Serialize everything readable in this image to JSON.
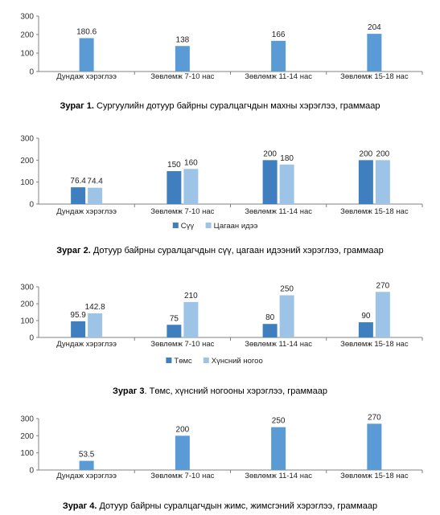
{
  "colors": {
    "primary": "#5B9BD5",
    "secondary": "#9DC3E6",
    "dark": "#3F7FBF",
    "axis": "#808080"
  },
  "chart_data": [
    {
      "type": "bar",
      "categories": [
        "Дундаж хэрэглээ",
        "Зөвлөмж 7-10 нас",
        "Зөвлөмж 11-14 нас",
        "Зөвлөмж 15-18 нас"
      ],
      "series": [
        {
          "values": [
            180.6,
            138,
            166,
            204
          ],
          "labels": [
            "180.6",
            "138",
            "166",
            "204"
          ]
        }
      ],
      "ylim": [
        0,
        300
      ],
      "yticks": [
        0,
        100,
        200,
        300
      ],
      "legend": "none",
      "caption_prefix": "Зураг 1.",
      "caption_text": " Сургуулийн дотуур байрны суралцагчдын махны хэрэглээ, граммаар"
    },
    {
      "type": "bar",
      "categories": [
        "Дундаж хэрэглээ",
        "Зөвлөмж 7-10 нас",
        "Зөвлөмж 11-14 нас",
        "Зөвлөмж 15-18 нас"
      ],
      "series": [
        {
          "name": "Сүү",
          "values": [
            76.4,
            150,
            200,
            200
          ],
          "labels": [
            "76.4",
            "150",
            "200",
            "200"
          ]
        },
        {
          "name": "Цагаан идээ",
          "values": [
            74.4,
            160,
            180,
            200
          ],
          "labels": [
            "74.4",
            "160",
            "180",
            "200"
          ]
        }
      ],
      "ylim": [
        0,
        300
      ],
      "yticks": [
        0,
        100,
        200,
        300
      ],
      "legend": "bottom",
      "caption_prefix": "Зураг 2.",
      "caption_text": " Дотуур байрны суралцагчдын сүү, цагаан идээний хэрэглээ, граммаар"
    },
    {
      "type": "bar",
      "categories": [
        "Дундаж хэрэглээ",
        "Зөвлөмж 7-10 нас",
        "Зөвлөмж 11-14 нас",
        "Зөвлөмж 15-18 нас"
      ],
      "series": [
        {
          "name": "Төмс",
          "values": [
            95.9,
            75,
            80,
            90
          ],
          "labels": [
            "95.9",
            "75",
            "80",
            "90"
          ]
        },
        {
          "name": "Хүнсний ногоо",
          "values": [
            142.8,
            210,
            250,
            270
          ],
          "labels": [
            "142.8",
            "210",
            "250",
            "270"
          ]
        }
      ],
      "ylim": [
        0,
        300
      ],
      "yticks": [
        0,
        100,
        200,
        300
      ],
      "legend": "bottom",
      "caption_prefix": "Зураг 3",
      "caption_text": ". Төмс, хүнсний ногооны хэрэглээ, граммаар"
    },
    {
      "type": "bar",
      "categories": [
        "Дундаж хэрэглээ",
        "Зөвлөмж 7-10 нас",
        "Зөвлөмж 11-14 нас",
        "Зөвлөмж 15-18 нас"
      ],
      "series": [
        {
          "values": [
            53.5,
            200,
            250,
            270
          ],
          "labels": [
            "53.5",
            "200",
            "250",
            "270"
          ]
        }
      ],
      "ylim": [
        0,
        300
      ],
      "yticks": [
        0,
        100,
        200,
        300
      ],
      "legend": "none",
      "caption_prefix": "Зураг 4.",
      "caption_text": " Дотуур байрны суралцагчдын жимс, жимсгэний хэрэглээ, граммаар"
    }
  ]
}
